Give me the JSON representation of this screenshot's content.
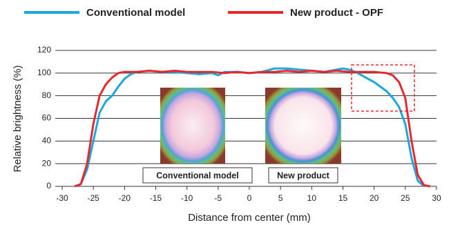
{
  "chart_data": {
    "type": "line",
    "x_label": "Distance from center (mm)",
    "y_label": "Relative brightness (%)",
    "xlim": [
      -30,
      30
    ],
    "xticks": [
      -30,
      -25,
      -20,
      -15,
      -10,
      -5,
      0,
      5,
      10,
      15,
      20,
      25,
      30
    ],
    "ylim": [
      0,
      120
    ],
    "yticks": [
      0,
      20,
      40,
      60,
      80,
      100,
      120
    ],
    "grid": true,
    "annotations": [
      "Conventional model",
      "New product"
    ],
    "series": [
      {
        "name": "Conventional model",
        "color": "#1aa7e0",
        "x": [
          -28,
          -27,
          -26,
          -25,
          -24,
          -23,
          -22,
          -21,
          -20,
          -19,
          -18,
          -16,
          -14,
          -12,
          -10,
          -8,
          -6,
          -5,
          -4,
          -2,
          0,
          2,
          4,
          6,
          8,
          10,
          12,
          14,
          15,
          16,
          17,
          18,
          19,
          20,
          21,
          22,
          23,
          24,
          25,
          26,
          27,
          28
        ],
        "values": [
          0,
          2,
          15,
          40,
          65,
          75,
          80,
          88,
          95,
          99,
          101,
          102,
          101,
          101,
          100,
          99,
          100,
          98,
          101,
          101,
          100,
          101,
          104,
          104,
          103,
          102,
          101,
          103,
          104,
          103,
          101,
          98,
          95,
          92,
          88,
          84,
          78,
          70,
          55,
          25,
          5,
          0
        ]
      },
      {
        "name": "New product - OPF",
        "color": "#e8262d",
        "x": [
          -28,
          -27,
          -26,
          -25,
          -24,
          -23,
          -22,
          -21,
          -20,
          -18,
          -16,
          -14,
          -12,
          -10,
          -8,
          -6,
          -4,
          -2,
          0,
          2,
          4,
          6,
          8,
          10,
          12,
          14,
          16,
          18,
          20,
          22,
          23,
          24,
          25,
          26,
          27,
          28,
          29
        ],
        "values": [
          0,
          2,
          20,
          55,
          80,
          90,
          96,
          100,
          101,
          101,
          102,
          101,
          102,
          101,
          101,
          101,
          100,
          101,
          100,
          101,
          101,
          102,
          101,
          102,
          101,
          102,
          101,
          101,
          101,
          100,
          98,
          92,
          78,
          40,
          10,
          1,
          0
        ]
      }
    ]
  }
}
